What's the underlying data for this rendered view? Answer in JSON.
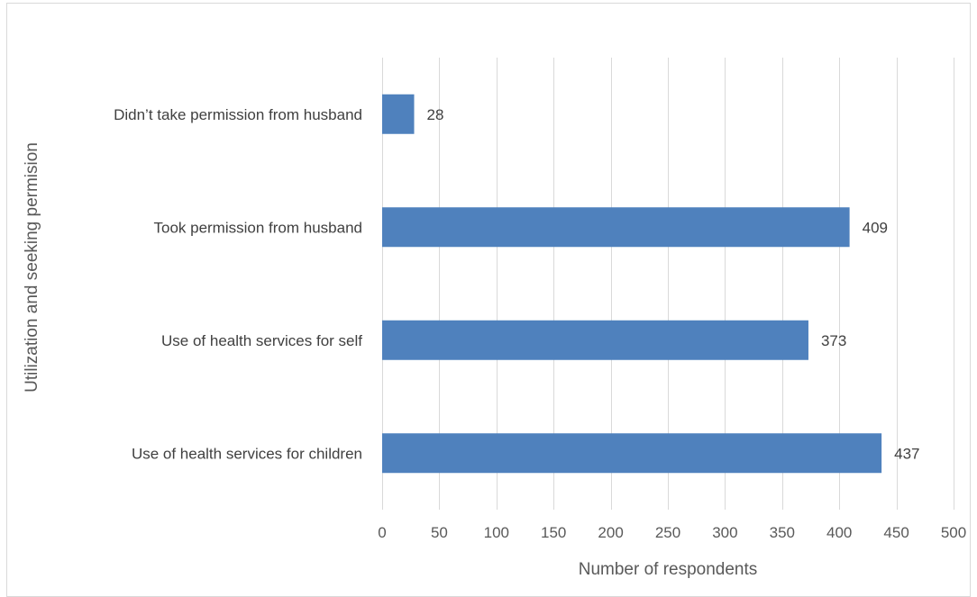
{
  "chart_data": {
    "type": "bar",
    "orientation": "horizontal",
    "title": "",
    "xlabel": "Number of respondents",
    "ylabel": "Utilization and seeking permision",
    "categories": [
      "Didn’t take permission from husband",
      "Took permission from husband",
      "Use of health services for self",
      "Use of health services for children"
    ],
    "values": [
      28,
      409,
      373,
      437
    ],
    "xlim": [
      0,
      500
    ],
    "xticks": [
      "0",
      "50",
      "100",
      "150",
      "200",
      "250",
      "300",
      "350",
      "400",
      "450",
      "500"
    ],
    "grid": true,
    "legend": "none",
    "bar_color": "#4f81bd",
    "grid_color": "#d9d9d9"
  }
}
